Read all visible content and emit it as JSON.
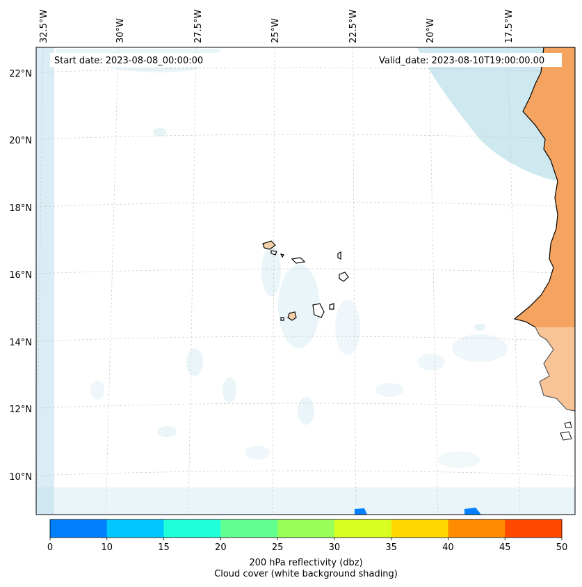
{
  "header": {
    "start_label": "Start date: 2023-08-08_00:00:00",
    "valid_label": "Valid_date: 2023-08-10T19:00:00.00"
  },
  "map": {
    "lon_labels": [
      "32.5°W",
      "30°W",
      "27.5°W",
      "25°W",
      "22.5°W",
      "20°W",
      "17.5°W"
    ],
    "lat_labels": [
      "22°N",
      "20°N",
      "18°N",
      "16°N",
      "14°N",
      "12°N",
      "10°N"
    ],
    "land_color": "#f4a460",
    "cloud_color": "#add8e6",
    "gridlines": true
  },
  "colorbar": {
    "ticks": [
      "0",
      "10",
      "15",
      "20",
      "25",
      "30",
      "35",
      "40",
      "45",
      "50"
    ],
    "colors": [
      "#0080ff",
      "#00c8ff",
      "#20ffd8",
      "#60ff90",
      "#98ff58",
      "#d8ff20",
      "#ffd800",
      "#ff8c00",
      "#ff4a00"
    ],
    "label": "200 hPa reflectivity (dbz)",
    "sublabel": "Cloud cover (white background shading)"
  }
}
